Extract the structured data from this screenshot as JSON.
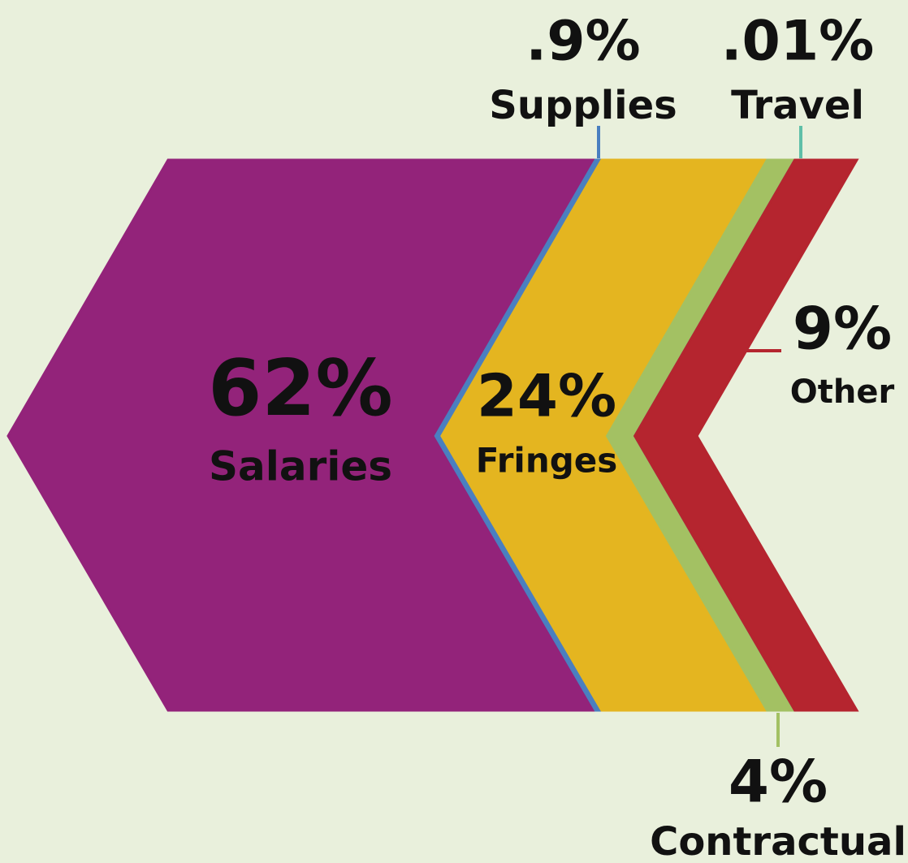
{
  "chart_data": {
    "type": "chevron",
    "categories": [
      "Salaries",
      "Supplies",
      "Fringes",
      "Contractual",
      "Travel",
      "Other"
    ],
    "values": [
      62,
      0.9,
      24,
      4,
      0.01,
      9
    ],
    "value_labels": [
      "62%",
      ".9%",
      "24%",
      "4%",
      ".01%",
      "9%"
    ],
    "colors": [
      "#93237a",
      "#4a7fc0",
      "#e4b520",
      "#a3c163",
      "#5fbfa8",
      "#b5252f"
    ]
  }
}
